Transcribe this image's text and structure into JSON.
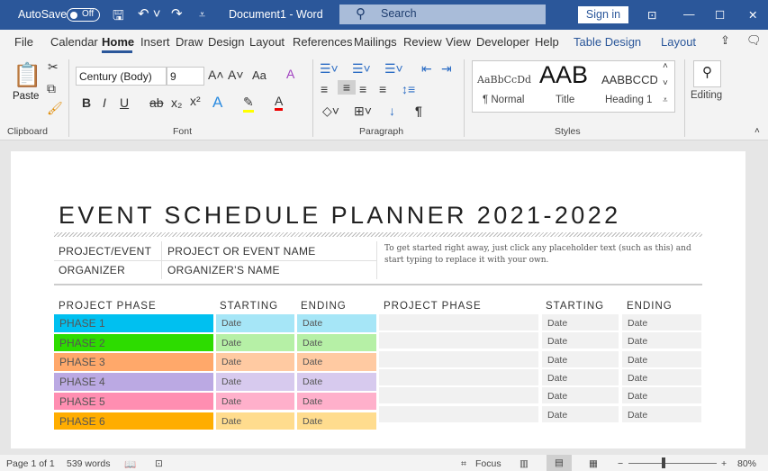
{
  "titlebar": {
    "autosave": "AutoSave",
    "toggle": "Off",
    "document": "Document1  -  Word",
    "search": "Search",
    "sign_in": "Sign in",
    "color": "#2b579a"
  },
  "tabs": [
    "File",
    "Calendar",
    "Home",
    "Insert",
    "Draw",
    "Design",
    "Layout",
    "References",
    "Mailings",
    "Review",
    "View",
    "Developer",
    "Help",
    "Table Design",
    "Layout"
  ],
  "ribbon": {
    "paste": "Paste",
    "font_name": "Century (Body)",
    "font_size": "9",
    "case": "Aa",
    "groups": [
      "Clipboard",
      "Font",
      "Paragraph",
      "Styles"
    ],
    "styles": [
      {
        "preview": "AaBbCcDd",
        "label": "¶ Normal"
      },
      {
        "preview": "AAB",
        "label": "Title"
      },
      {
        "preview": "AABBCCD",
        "label": "Heading 1"
      }
    ],
    "editing": "Editing"
  },
  "document": {
    "title": "EVENT SCHEDULE PLANNER 2021-2022",
    "info": [
      {
        "label": "PROJECT/EVENT",
        "value": "PROJECT OR EVENT NAME"
      },
      {
        "label": "ORGANIZER",
        "value": "ORGANIZER’S NAME"
      }
    ],
    "help": "To get started right away, just click any placeholder text (such as this) and start typing to replace it with your own.",
    "headers": [
      "PROJECT PHASE",
      "STARTING",
      "ENDING",
      "PROJECT PHASE",
      "STARTING",
      "ENDING"
    ],
    "phases": [
      {
        "name": "PHASE 1",
        "start": "Date",
        "end": "Date",
        "color": "#00c0f0",
        "light": "#a6e6f7"
      },
      {
        "name": "PHASE 2",
        "start": "Date",
        "end": "Date",
        "color": "#2ddc00",
        "light": "#b6f0a6"
      },
      {
        "name": "PHASE 3",
        "start": "Date",
        "end": "Date",
        "color": "#ffa86a",
        "light": "#ffcaa2"
      },
      {
        "name": "PHASE 4",
        "start": "Date",
        "end": "Date",
        "color": "#bba9e3",
        "light": "#d7caee"
      },
      {
        "name": "PHASE 5",
        "start": "Date",
        "end": "Date",
        "color": "#ff8eb1",
        "light": "#ffb0cb"
      },
      {
        "name": "PHASE 6",
        "start": "Date",
        "end": "Date",
        "color": "#ffad00",
        "light": "#ffdc8e"
      }
    ],
    "right_rows": [
      {
        "name": "",
        "start": "Date",
        "end": "Date"
      },
      {
        "name": "",
        "start": "Date",
        "end": "Date"
      },
      {
        "name": "",
        "start": "Date",
        "end": "Date"
      },
      {
        "name": "",
        "start": "Date",
        "end": "Date"
      },
      {
        "name": "",
        "start": "Date",
        "end": "Date"
      },
      {
        "name": "",
        "start": "Date",
        "end": "Date"
      }
    ]
  },
  "status": {
    "page": "Page 1 of 1",
    "words": "539 words",
    "focus": "Focus",
    "zoom": "80%",
    "zoom_level": 80
  }
}
